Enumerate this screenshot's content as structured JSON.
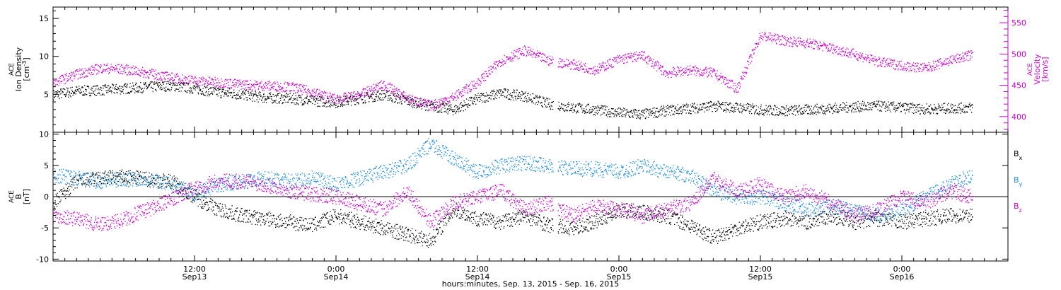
{
  "chart_data": [
    {
      "type": "scatter",
      "panel": "top",
      "xlabel": "hours:minutes, Sep. 13, 2015 - Sep. 16, 2015",
      "ylabel_lines": [
        "ACE",
        "Ion Density",
        "[cm^-3]"
      ],
      "ylabel_right_lines": [
        "ACE",
        "Velocity",
        "[km/s]"
      ],
      "xlim_hours": [
        0,
        81
      ],
      "ylim_left": [
        0,
        16.5
      ],
      "ylim_right": [
        375,
        575
      ],
      "yticks_left": [
        5,
        10,
        15
      ],
      "yticks_right": [
        400,
        450,
        500,
        550
      ],
      "right_axis_color": "#cc00cc",
      "series": [
        {
          "name": "Ion Density",
          "axis": "left",
          "color": "#000000",
          "x": [
            0,
            2,
            4,
            6,
            8,
            10,
            12,
            14,
            16,
            18,
            20,
            22,
            24,
            26,
            28,
            30,
            32,
            34,
            36,
            38,
            40,
            42,
            44,
            46,
            48,
            50,
            52,
            54,
            56,
            58,
            60,
            62,
            64,
            66,
            68,
            70,
            72,
            74,
            76,
            78
          ],
          "y": [
            5,
            5.5,
            5.6,
            5.8,
            6,
            6.2,
            5.8,
            5.3,
            5,
            4.6,
            4.5,
            4.2,
            4,
            4.5,
            5,
            4.2,
            3.5,
            3,
            4.5,
            5.2,
            4.8,
            3.8,
            3.3,
            3,
            2.6,
            2.4,
            2.9,
            3.2,
            3.5,
            3.3,
            3,
            2.9,
            3,
            3.2,
            3.4,
            3.5,
            3.3,
            3.1,
            3.2,
            3.3
          ]
        },
        {
          "name": "Velocity",
          "axis": "right",
          "color": "#cc00cc",
          "x": [
            0,
            2,
            4,
            6,
            8,
            10,
            12,
            14,
            16,
            18,
            20,
            22,
            24,
            26,
            28,
            30,
            32,
            34,
            36,
            38,
            40,
            42,
            44,
            46,
            48,
            50,
            52,
            54,
            56,
            58,
            60,
            62,
            64,
            66,
            68,
            70,
            72,
            74,
            76,
            78
          ],
          "y": [
            455,
            468,
            478,
            476,
            470,
            463,
            458,
            455,
            452,
            450,
            448,
            440,
            428,
            435,
            452,
            430,
            418,
            432,
            455,
            490,
            506,
            490,
            484,
            475,
            492,
            498,
            470,
            475,
            470,
            445,
            530,
            522,
            518,
            510,
            500,
            488,
            482,
            478,
            490,
            500
          ]
        }
      ]
    },
    {
      "type": "scatter",
      "panel": "bottom",
      "ylabel_lines": [
        "ACE",
        "B",
        "[nT]"
      ],
      "xlim_hours": [
        0,
        81
      ],
      "ylim": [
        -10.3,
        10.3
      ],
      "yticks": [
        -10,
        -5,
        0,
        5,
        10
      ],
      "zero_line": true,
      "series": [
        {
          "name": "Bx",
          "color": "#000000",
          "x": [
            0,
            2,
            4,
            6,
            8,
            10,
            12,
            14,
            16,
            18,
            20,
            22,
            24,
            26,
            28,
            30,
            32,
            34,
            36,
            38,
            40,
            42,
            44,
            46,
            48,
            50,
            52,
            54,
            56,
            58,
            60,
            62,
            64,
            66,
            68,
            70,
            72,
            74,
            76,
            78
          ],
          "y": [
            -1,
            2.5,
            3,
            3.2,
            2.8,
            2.5,
            0,
            -2,
            -3,
            -3.5,
            -4,
            -4.5,
            -3,
            -4,
            -5,
            -6,
            -7,
            -2,
            -3.5,
            -4,
            -3,
            -4.5,
            -5,
            -4,
            -2,
            -2.5,
            -3,
            -4.5,
            -6.5,
            -5,
            -4,
            -3.5,
            -4,
            -3,
            -4,
            -3.5,
            -4,
            -3.5,
            -3,
            -3
          ]
        },
        {
          "name": "By",
          "color": "#1a8ce0",
          "x": [
            0,
            2,
            4,
            6,
            8,
            10,
            12,
            14,
            16,
            18,
            20,
            22,
            24,
            26,
            28,
            30,
            32,
            34,
            36,
            38,
            40,
            42,
            44,
            46,
            48,
            50,
            52,
            54,
            56,
            58,
            60,
            62,
            64,
            66,
            68,
            70,
            72,
            74,
            76,
            78
          ],
          "y": [
            3.5,
            3,
            2.5,
            2.8,
            3,
            2,
            0.5,
            2,
            2.5,
            3,
            2.5,
            3,
            2,
            3,
            4,
            5,
            8.5,
            6,
            4,
            5,
            5.5,
            5,
            4.5,
            4.5,
            4,
            5,
            4,
            3.5,
            1,
            0,
            0,
            -1,
            -2,
            -1.5,
            -2,
            -3,
            -2,
            0,
            2,
            3.5
          ]
        },
        {
          "name": "Bz",
          "color": "#cc00cc",
          "x": [
            0,
            2,
            4,
            6,
            8,
            10,
            12,
            14,
            16,
            18,
            20,
            22,
            24,
            26,
            28,
            30,
            32,
            34,
            36,
            38,
            40,
            42,
            44,
            46,
            48,
            50,
            52,
            54,
            56,
            58,
            60,
            62,
            64,
            66,
            68,
            70,
            72,
            74,
            76,
            78
          ],
          "y": [
            -3,
            -3.5,
            -4.5,
            -3.5,
            -2,
            -0.5,
            1.5,
            2.5,
            2.5,
            2,
            1,
            0.5,
            0,
            -1,
            -2,
            1,
            -4,
            -1,
            0,
            1,
            -2,
            -1,
            -3,
            -1.5,
            -2,
            -3,
            -2,
            -1,
            3,
            1,
            2,
            0,
            1,
            -1,
            -3,
            -2,
            0,
            -1,
            1,
            0
          ]
        }
      ]
    }
  ],
  "x_axis": {
    "ticks": [
      {
        "hour": 12,
        "time": "12:00",
        "day": "Sep13"
      },
      {
        "hour": 24,
        "time": "0:00",
        "day": "Sep14"
      },
      {
        "hour": 36,
        "time": "12:00",
        "day": "Sep14"
      },
      {
        "hour": 48,
        "time": "0:00",
        "day": "Sep15"
      },
      {
        "hour": 60,
        "time": "12:00",
        "day": "Sep15"
      },
      {
        "hour": 72,
        "time": "0:00",
        "day": "Sep16"
      }
    ],
    "data_gap_hours": [
      42.4,
      42.8
    ]
  },
  "legend": {
    "placement": "right",
    "entries": [
      {
        "label": "B",
        "sub": "x",
        "color": "#000000"
      },
      {
        "label": "B",
        "sub": "y",
        "color": "#1a8ce0"
      },
      {
        "label": "B",
        "sub": "z",
        "color": "#cc00cc"
      }
    ]
  }
}
